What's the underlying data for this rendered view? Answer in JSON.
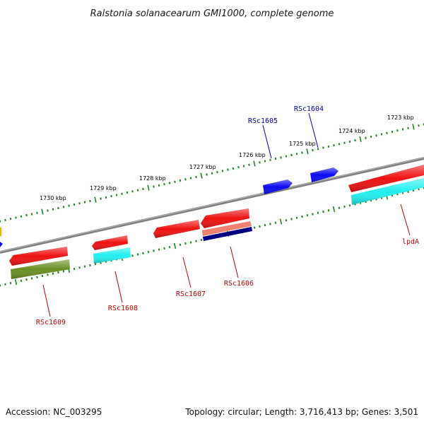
{
  "title": "Ralstonia solanacearum GMI1000, complete genome",
  "accession": "Accession: NC_003295",
  "topology": "Topology: circular; Length: 3,716,413 bp; Genes: 3,501",
  "colors": {
    "backbone": "#808080",
    "outer_ticks": "#1a8a1a",
    "forward_label": "#0000c8",
    "reverse_label": "#c80000",
    "gene_red": "#ee1111",
    "gene_blue": "#0a0aee",
    "gene_cyan": "#22eeee",
    "gene_olive": "#6b8e23",
    "gene_salmon": "#f08070",
    "gene_navy": "#000080",
    "gene_orange": "#ffa500"
  },
  "ticks": [
    "1723 kbp",
    "1724 kbp",
    "1725 kbp",
    "1726 kbp",
    "1727 kbp",
    "1728 kbp",
    "1729 kbp",
    "1730 kbp"
  ],
  "gene_labels": [
    "RSc1604",
    "RSc1605",
    "lpdA",
    "RSc1606",
    "RSc1607",
    "RSc1608",
    "RSc1609"
  ]
}
